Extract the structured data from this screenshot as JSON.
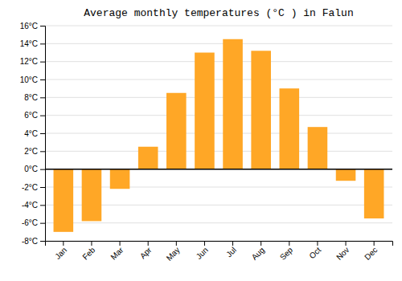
{
  "chart_data": {
    "type": "bar",
    "title": "Average monthly temperatures (°C ) in Falun",
    "categories": [
      "Jan",
      "Feb",
      "Mar",
      "Apr",
      "May",
      "Jun",
      "Jul",
      "Aug",
      "Sep",
      "Oct",
      "Nov",
      "Dec"
    ],
    "values": [
      -7.0,
      -5.8,
      -2.2,
      2.5,
      8.5,
      13.0,
      14.5,
      13.2,
      9.0,
      4.7,
      -1.3,
      -5.5
    ],
    "color": "#FFA726",
    "ylim": [
      -8,
      16
    ],
    "yticks": [
      {
        "value": -8,
        "label": "-8°C"
      },
      {
        "value": -6,
        "label": "-6°C"
      },
      {
        "value": -4,
        "label": "-4°C"
      },
      {
        "value": -2,
        "label": "-2°C"
      },
      {
        "value": 0,
        "label": "0°C"
      },
      {
        "value": 2,
        "label": "2°C"
      },
      {
        "value": 4,
        "label": "4°C"
      },
      {
        "value": 6,
        "label": "6°C"
      },
      {
        "value": 8,
        "label": "8°C"
      },
      {
        "value": 10,
        "label": "10°C"
      },
      {
        "value": 12,
        "label": "12°C"
      },
      {
        "value": 14,
        "label": "14°C"
      },
      {
        "value": 16,
        "label": "16°C"
      }
    ],
    "grid": true
  }
}
